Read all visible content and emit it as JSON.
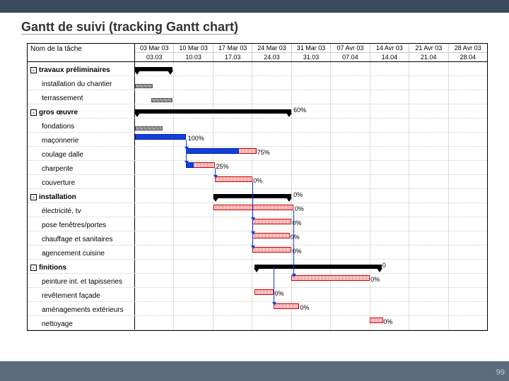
{
  "title": "Gantt de suivi (tracking Gantt chart)",
  "name_header": "Nom de la tâche",
  "page_number": "99",
  "colors": {
    "top_bar": "#3b4a5c",
    "footer_bar": "#5a6b7c",
    "plan_border": "#c00",
    "actual_fill": "#1040e0",
    "summary": "#000",
    "grid": "#bbb"
  },
  "timeline": {
    "columns": 9,
    "header1": [
      "03 Mar 03",
      "10 Mar 03",
      "17 Mar 03",
      "24 Mar 03",
      "31 Mar 03",
      "07 Avr 03",
      "14 Avr 03",
      "21 Avr 03",
      "28 Avr 03"
    ],
    "header2": [
      "03.03",
      "10.03",
      "17.03",
      "24.03",
      "31.03",
      "07.04",
      "14.04",
      "21.04",
      "28.04"
    ]
  },
  "tasks": [
    {
      "name": "travaux préliminaires",
      "group": true,
      "summary": {
        "start": 0,
        "end": 0.95
      }
    },
    {
      "name": "installation du chantier",
      "child": true,
      "base": {
        "start": 0,
        "end": 0.45
      }
    },
    {
      "name": "terrassement",
      "child": true,
      "base": {
        "start": 0.42,
        "end": 0.95
      }
    },
    {
      "name": "gros œuvre",
      "group": true,
      "summary": {
        "start": 0,
        "end": 4.0
      },
      "pct": "60%",
      "pct_at": 4.05
    },
    {
      "name": "fondations",
      "child": true,
      "base": {
        "start": 0,
        "end": 0.7
      }
    },
    {
      "name": "maçonnerie",
      "child": true,
      "plan": {
        "start": 0,
        "end": 1.3
      },
      "actual": {
        "start": 0,
        "end": 1.3
      },
      "pct": "100%",
      "pct_at": 1.35
    },
    {
      "name": "coulage dalle",
      "child": true,
      "plan": {
        "start": 1.3,
        "end": 3.1
      },
      "actual": {
        "start": 1.3,
        "end": 2.65
      },
      "pct": "75%",
      "pct_at": 3.12
    },
    {
      "name": "charpente",
      "child": true,
      "plan": {
        "start": 1.3,
        "end": 2.05
      },
      "actual": {
        "start": 1.3,
        "end": 1.5
      },
      "pct": "25%",
      "pct_at": 2.07
    },
    {
      "name": "couverture",
      "child": true,
      "plan": {
        "start": 2.05,
        "end": 3.0
      },
      "pct": "0%",
      "pct_at": 3.02
    },
    {
      "name": "installation",
      "group": true,
      "summary": {
        "start": 2.0,
        "end": 4.0
      },
      "pct": "0%",
      "pct_at": 4.05
    },
    {
      "name": "électricité, tv",
      "child": true,
      "plan": {
        "start": 2.0,
        "end": 4.05
      },
      "pct": "0%",
      "pct_at": 4.08
    },
    {
      "name": "pose fenêtres/portes",
      "child": true,
      "plan": {
        "start": 3.0,
        "end": 4.0
      },
      "pct": "0%",
      "pct_at": 4.02
    },
    {
      "name": "chauffage et sanitaires",
      "child": true,
      "plan": {
        "start": 3.0,
        "end": 3.95
      },
      "pct": "0%",
      "pct_at": 3.97
    },
    {
      "name": "agencement cuisine",
      "child": true,
      "plan": {
        "start": 3.0,
        "end": 4.0
      },
      "pct": "0%",
      "pct_at": 4.02
    },
    {
      "name": "finitions",
      "group": true,
      "summary": {
        "start": 3.05,
        "end": 6.3
      },
      "pct": "0",
      "pct_at": 6.32
    },
    {
      "name": "peinture int. et tapisseries",
      "child": true,
      "plan": {
        "start": 4.0,
        "end": 6.0
      },
      "pct": "0%",
      "pct_at": 6.02
    },
    {
      "name": "revêtement façade",
      "child": true,
      "plan": {
        "start": 3.05,
        "end": 3.55
      },
      "pct": "0%",
      "pct_at": 3.57
    },
    {
      "name": "aménagements extérieurs",
      "child": true,
      "plan": {
        "start": 3.55,
        "end": 4.2
      },
      "pct": "0%",
      "pct_at": 4.22
    },
    {
      "name": "nettoyage",
      "child": true,
      "plan": {
        "start": 6.0,
        "end": 6.35
      },
      "pct": "0%",
      "pct_at": 6.35,
      "pct_clip": true
    }
  ],
  "links": [
    {
      "from_row": 5,
      "from_x": 1.3,
      "to_row": 6
    },
    {
      "from_row": 5,
      "from_x": 1.3,
      "to_row": 7
    },
    {
      "from_row": 7,
      "from_x": 2.05,
      "to_row": 8
    },
    {
      "from_row": 8,
      "from_x": 3.0,
      "to_row": 11
    },
    {
      "from_row": 8,
      "from_x": 3.0,
      "to_row": 12
    },
    {
      "from_row": 8,
      "from_x": 3.0,
      "to_row": 13
    },
    {
      "from_row": 10,
      "from_x": 4.05,
      "to_row": 15
    },
    {
      "from_row": 14,
      "from_x": 3.55,
      "to_row": 17,
      "x_override": 3.55
    }
  ]
}
